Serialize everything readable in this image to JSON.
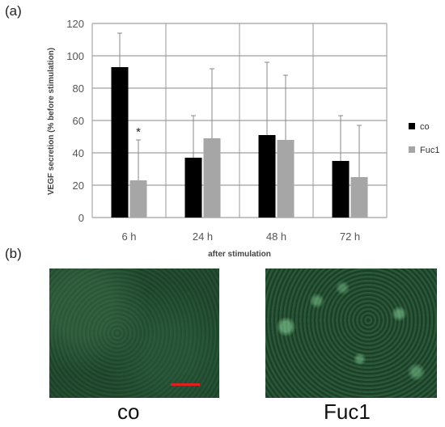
{
  "panels": {
    "a_label": "(a)",
    "b_label": "(b)"
  },
  "chart_data": {
    "type": "bar",
    "categories": [
      "6 h",
      "24 h",
      "48 h",
      "72 h"
    ],
    "series": [
      {
        "name": "co",
        "values": [
          93,
          37,
          51,
          35
        ],
        "errors": [
          21,
          26,
          45,
          28
        ],
        "color": "#000000"
      },
      {
        "name": "Fuc1",
        "values": [
          23,
          49,
          48,
          25
        ],
        "errors": [
          25,
          43,
          40,
          32
        ],
        "color": "#a6a6a6"
      }
    ],
    "xlabel": "after stimulation",
    "ylabel": "VEGF secretion (% before stimulation)",
    "ylim": [
      0,
      120
    ],
    "yticks": [
      0,
      20,
      40,
      60,
      80,
      100,
      120
    ],
    "grid": true,
    "legend_position": "right",
    "annotations": [
      {
        "text": "*",
        "category": "6 h",
        "series": "Fuc1"
      }
    ]
  },
  "images": {
    "left_caption": "co",
    "right_caption": "Fuc1"
  }
}
